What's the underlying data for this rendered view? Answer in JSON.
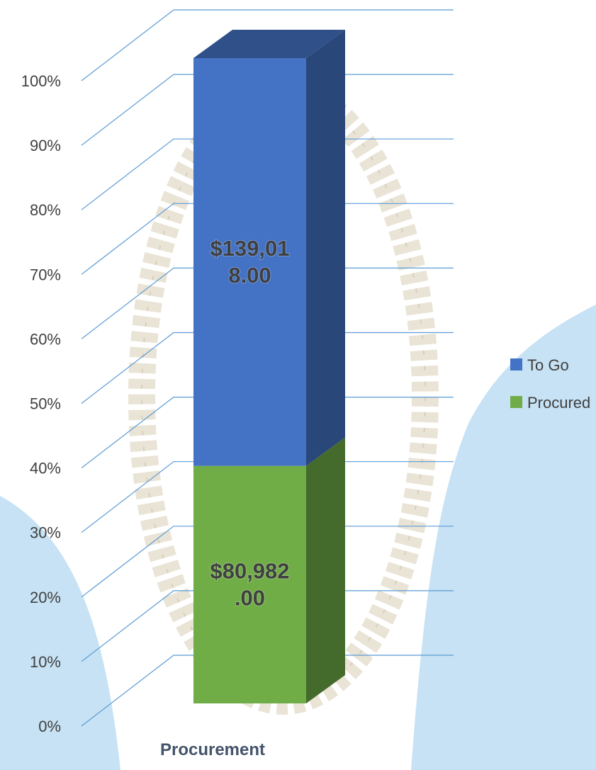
{
  "chart_data": {
    "type": "bar3d_stacked_percent",
    "categories": [
      "Procurement"
    ],
    "series": [
      {
        "name": "Procured",
        "color": "#70ad47",
        "values": [
          80982
        ],
        "value_labels": [
          "$80,982.00"
        ]
      },
      {
        "name": "To Go",
        "color": "#4472c4",
        "values": [
          139018
        ],
        "value_labels": [
          "$139,018.00"
        ]
      }
    ],
    "ylim": [
      0,
      100
    ],
    "yticks": [
      {
        "value": 0,
        "label": "0%"
      },
      {
        "value": 10,
        "label": "10%"
      },
      {
        "value": 20,
        "label": "20%"
      },
      {
        "value": 30,
        "label": "30%"
      },
      {
        "value": 40,
        "label": "40%"
      },
      {
        "value": 50,
        "label": "50%"
      },
      {
        "value": 60,
        "label": "60%"
      },
      {
        "value": 70,
        "label": "70%"
      },
      {
        "value": 80,
        "label": "80%"
      },
      {
        "value": 90,
        "label": "90%"
      },
      {
        "value": 100,
        "label": "100%"
      }
    ],
    "grid": true,
    "legend": "right"
  }
}
